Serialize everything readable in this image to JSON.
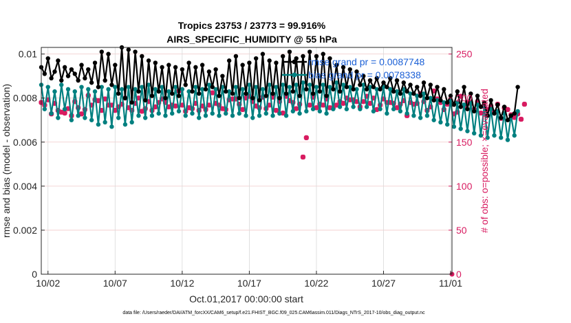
{
  "chart_data": {
    "type": "line",
    "title_line1": "Tropics 23753 / 23773 = 99.916%",
    "title_line2": "AIRS_SPECIFIC_HUMIDITY @ 55 hPa",
    "xlabel": "Oct.01,2017 00:00:00 start",
    "ylabel_left": "rmse and bias (model - observation)",
    "ylabel_right": "# of obs: o=possible; ×=evaluated",
    "footer": "data file: /Users/raeder/DAI/ATM_forcXX/CAM6_setup/f.e21.FHIST_BGC.f09_025.CAM6assim.011/Diags_NTrS_2017-10/obs_diag_output.nc",
    "x_tick_labels": [
      "10/02",
      "10/07",
      "10/12",
      "10/17",
      "10/22",
      "10/27",
      "11/01"
    ],
    "x_tick_days": [
      1,
      6,
      11,
      16,
      21,
      26,
      31
    ],
    "xlim_days": [
      0.5,
      31.1
    ],
    "ylim_left": [
      0,
      0.0103
    ],
    "y_left_ticks": [
      0,
      0.002,
      0.004,
      0.006,
      0.008,
      0.01
    ],
    "y_left_tick_labels": [
      "0",
      "0.002",
      "0.004",
      "0.006",
      "0.008",
      "0.01"
    ],
    "ylim_right": [
      0,
      257.5
    ],
    "y_right_ticks": [
      0,
      50,
      100,
      150,
      200,
      250
    ],
    "y_right_tick_labels": [
      "0",
      "50",
      "100",
      "150",
      "200",
      "250"
    ],
    "grid": true,
    "legend": [
      {
        "label": "rmse grand pr = 0.0087748",
        "color": "#000000"
      },
      {
        "label": "bias grand pr = 0.0078338",
        "color": "#008080"
      }
    ],
    "colors": {
      "rmse": "#000000",
      "bias": "#008080",
      "obs": "#d81b60",
      "legend_text": "#1a5fd6",
      "grid": "#f0c8c8"
    },
    "series": [
      {
        "name": "rmse",
        "step_hours": 6,
        "start_day": 0.5,
        "values": [
          0.0094,
          0.0091,
          0.0098,
          0.0089,
          0.0092,
          0.0097,
          0.0088,
          0.0094,
          0.009,
          0.0093,
          0.0091,
          0.0088,
          0.0095,
          0.0089,
          0.0093,
          0.0087,
          0.0096,
          0.0085,
          0.0101,
          0.0088,
          0.01,
          0.0086,
          0.0095,
          0.0082,
          0.0103,
          0.008,
          0.0102,
          0.0078,
          0.0101,
          0.0083,
          0.0099,
          0.0079,
          0.0097,
          0.0081,
          0.0096,
          0.0083,
          0.0094,
          0.008,
          0.0095,
          0.0082,
          0.0094,
          0.0081,
          0.0093,
          0.0086,
          0.0096,
          0.0083,
          0.0094,
          0.0082,
          0.0095,
          0.0084,
          0.0092,
          0.0085,
          0.0093,
          0.0081,
          0.009,
          0.0083,
          0.0097,
          0.0082,
          0.0099,
          0.008,
          0.0095,
          0.0082,
          0.0096,
          0.008,
          0.0098,
          0.0079,
          0.01,
          0.0081,
          0.0097,
          0.0082,
          0.0096,
          0.008,
          0.0099,
          0.0082,
          0.0101,
          0.0083,
          0.0098,
          0.0081,
          0.0099,
          0.0084,
          0.0101,
          0.0082,
          0.0099,
          0.0083,
          0.01,
          0.0081,
          0.0098,
          0.0084,
          0.0095,
          0.0083,
          0.0094,
          0.0085,
          0.0093,
          0.0084,
          0.0092,
          0.0086,
          0.009,
          0.0084,
          0.0088,
          0.0085,
          0.0089,
          0.0084,
          0.0087,
          0.0085,
          0.0089,
          0.0083,
          0.0088,
          0.0082,
          0.0087,
          0.0083,
          0.0086,
          0.0082,
          0.0085,
          0.0081,
          0.0087,
          0.008,
          0.0086,
          0.0079,
          0.0085,
          0.0079,
          0.0084,
          0.0078,
          0.0081,
          0.0077,
          0.0083,
          0.0076,
          0.0085,
          0.0075,
          0.0082,
          0.0074,
          0.0081,
          0.0076,
          0.0078,
          0.0072,
          0.0079,
          0.0073,
          0.0077,
          0.0071,
          0.0076,
          0.007,
          0.0072,
          0.0073,
          0.0085
        ]
      },
      {
        "name": "bias",
        "step_hours": 6,
        "start_day": 0.5,
        "values": [
          0.0086,
          0.0075,
          0.0085,
          0.0073,
          0.0083,
          0.0071,
          0.0086,
          0.0075,
          0.0084,
          0.007,
          0.0083,
          0.0072,
          0.0085,
          0.0071,
          0.0084,
          0.007,
          0.0083,
          0.0068,
          0.0085,
          0.0069,
          0.0084,
          0.0067,
          0.0085,
          0.0071,
          0.0084,
          0.0068,
          0.0085,
          0.0069,
          0.0084,
          0.0072,
          0.0085,
          0.0071,
          0.0086,
          0.0072,
          0.0084,
          0.0073,
          0.0085,
          0.0072,
          0.0083,
          0.0073,
          0.0085,
          0.0074,
          0.0084,
          0.0072,
          0.0083,
          0.0073,
          0.0085,
          0.0071,
          0.0084,
          0.0072,
          0.0086,
          0.0073,
          0.0084,
          0.0072,
          0.0085,
          0.0073,
          0.0083,
          0.0072,
          0.0085,
          0.0073,
          0.0084,
          0.0072,
          0.0086,
          0.0071,
          0.0085,
          0.0072,
          0.0084,
          0.0073,
          0.0086,
          0.0072,
          0.0085,
          0.0073,
          0.0086,
          0.0072,
          0.0085,
          0.0074,
          0.0086,
          0.0073,
          0.0087,
          0.0074,
          0.0086,
          0.0075,
          0.0085,
          0.0074,
          0.0086,
          0.0073,
          0.0085,
          0.0075,
          0.0087,
          0.0076,
          0.0086,
          0.0075,
          0.0085,
          0.0076,
          0.0084,
          0.0075,
          0.0086,
          0.0076,
          0.0085,
          0.0074,
          0.0084,
          0.0075,
          0.0085,
          0.0073,
          0.0084,
          0.0075,
          0.0083,
          0.0074,
          0.0084,
          0.0073,
          0.0082,
          0.0072,
          0.0081,
          0.0071,
          0.0082,
          0.0072,
          0.008,
          0.007,
          0.0079,
          0.0069,
          0.0078,
          0.0068,
          0.0079,
          0.0067,
          0.0078,
          0.0066,
          0.0077,
          0.0065,
          0.0078,
          0.0064,
          0.0077,
          0.0063,
          0.0076,
          0.0062,
          0.0075,
          0.0063,
          0.0074,
          0.0062,
          0.0073,
          0.0061,
          0.0072,
          0.0063,
          0.0074
        ]
      },
      {
        "name": "obs_count",
        "axis": "right",
        "step_hours": 6,
        "start_day": 0.5,
        "values": [
          195,
          192,
          198,
          182,
          194,
          186,
          184,
          183,
          188,
          180,
          196,
          189,
          182,
          187,
          203,
          192,
          198,
          197,
          186,
          199,
          192,
          192,
          186,
          190,
          193,
          200,
          189,
          186,
          194,
          200,
          185,
          188,
          196,
          186,
          190,
          195,
          199,
          195,
          190,
          192,
          191,
          208,
          192,
          185,
          189,
          188,
          194,
          186,
          191,
          187,
          192,
          206,
          194,
          192,
          188,
          187,
          198,
          199,
          199,
          193,
          187,
          200,
          202,
          196,
          191,
          189,
          201,
          188,
          192,
          201,
          186,
          196,
          183,
          202,
          197,
          195,
          188,
          193,
          133,
          155,
          192,
          201,
          189,
          193,
          192,
          199,
          189,
          189,
          192,
          196,
          194,
          200,
          198,
          198,
          196,
          190,
          196,
          202,
          194,
          200,
          187,
          192,
          199,
          195,
          195,
          194,
          189,
          193,
          197,
          180,
          195,
          193,
          194,
          205,
          196,
          186,
          190,
          208,
          199,
          195,
          187,
          193,
          197,
          182,
          184,
          202,
          191,
          195,
          194,
          187,
          196,
          183,
          191,
          187,
          191,
          184,
          193,
          177,
          189,
          187,
          181,
          178,
          182,
          176,
          193
        ]
      }
    ]
  }
}
